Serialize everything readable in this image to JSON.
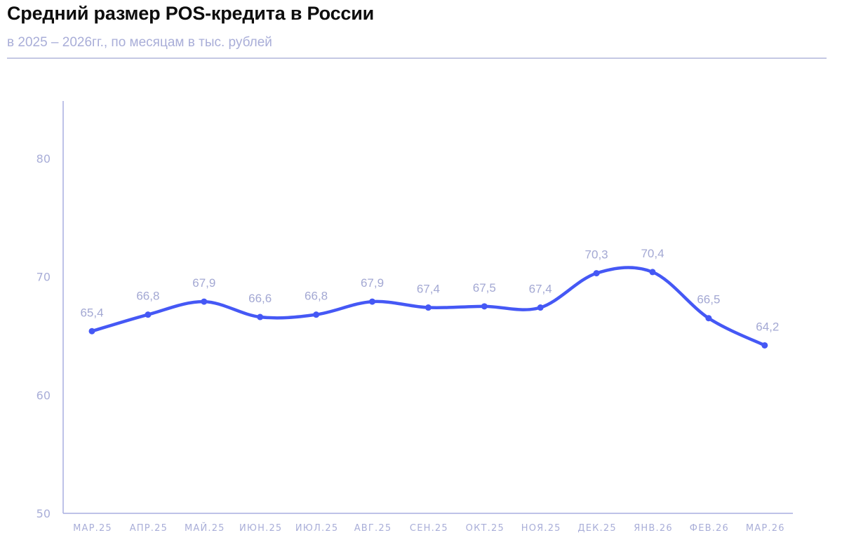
{
  "header": {
    "title": "Средний размер POS-кредита в России",
    "subtitle": "в 2025 – 2026гг., по месяцам в тыс. рублей"
  },
  "colors": {
    "line": "#4558f5",
    "axis": "#a9aee0",
    "text_muted": "#a9aed8",
    "divider": "#c5c8e4",
    "title": "#0d0d0d"
  },
  "chart_data": {
    "type": "line",
    "title": "Средний размер POS-кредита в России",
    "subtitle": "в 2025 – 2026гг., по месяцам в тыс. рублей",
    "xlabel": "",
    "ylabel": "тыс. рублей",
    "categories": [
      "МАР.25",
      "АПР.25",
      "МАЙ.25",
      "ИЮН.25",
      "ИЮЛ.25",
      "АВГ.25",
      "СЕН.25",
      "ОКТ.25",
      "НОЯ.25",
      "ДЕК.25",
      "ЯНВ.26",
      "ФЕВ.26",
      "МАР.26"
    ],
    "values": [
      65.4,
      66.8,
      67.9,
      66.6,
      66.8,
      67.9,
      67.4,
      67.5,
      67.4,
      70.3,
      70.4,
      66.5,
      64.2
    ],
    "value_labels": [
      "65,4",
      "66,8",
      "67,9",
      "66,6",
      "66,8",
      "67,9",
      "67,4",
      "67,5",
      "67,4",
      "70,3",
      "70,4",
      "66,5",
      "64,2"
    ],
    "yticks": [
      50,
      60,
      70,
      80
    ],
    "ylim": [
      50,
      85
    ],
    "grid": false,
    "legend": null,
    "smooth": true
  }
}
